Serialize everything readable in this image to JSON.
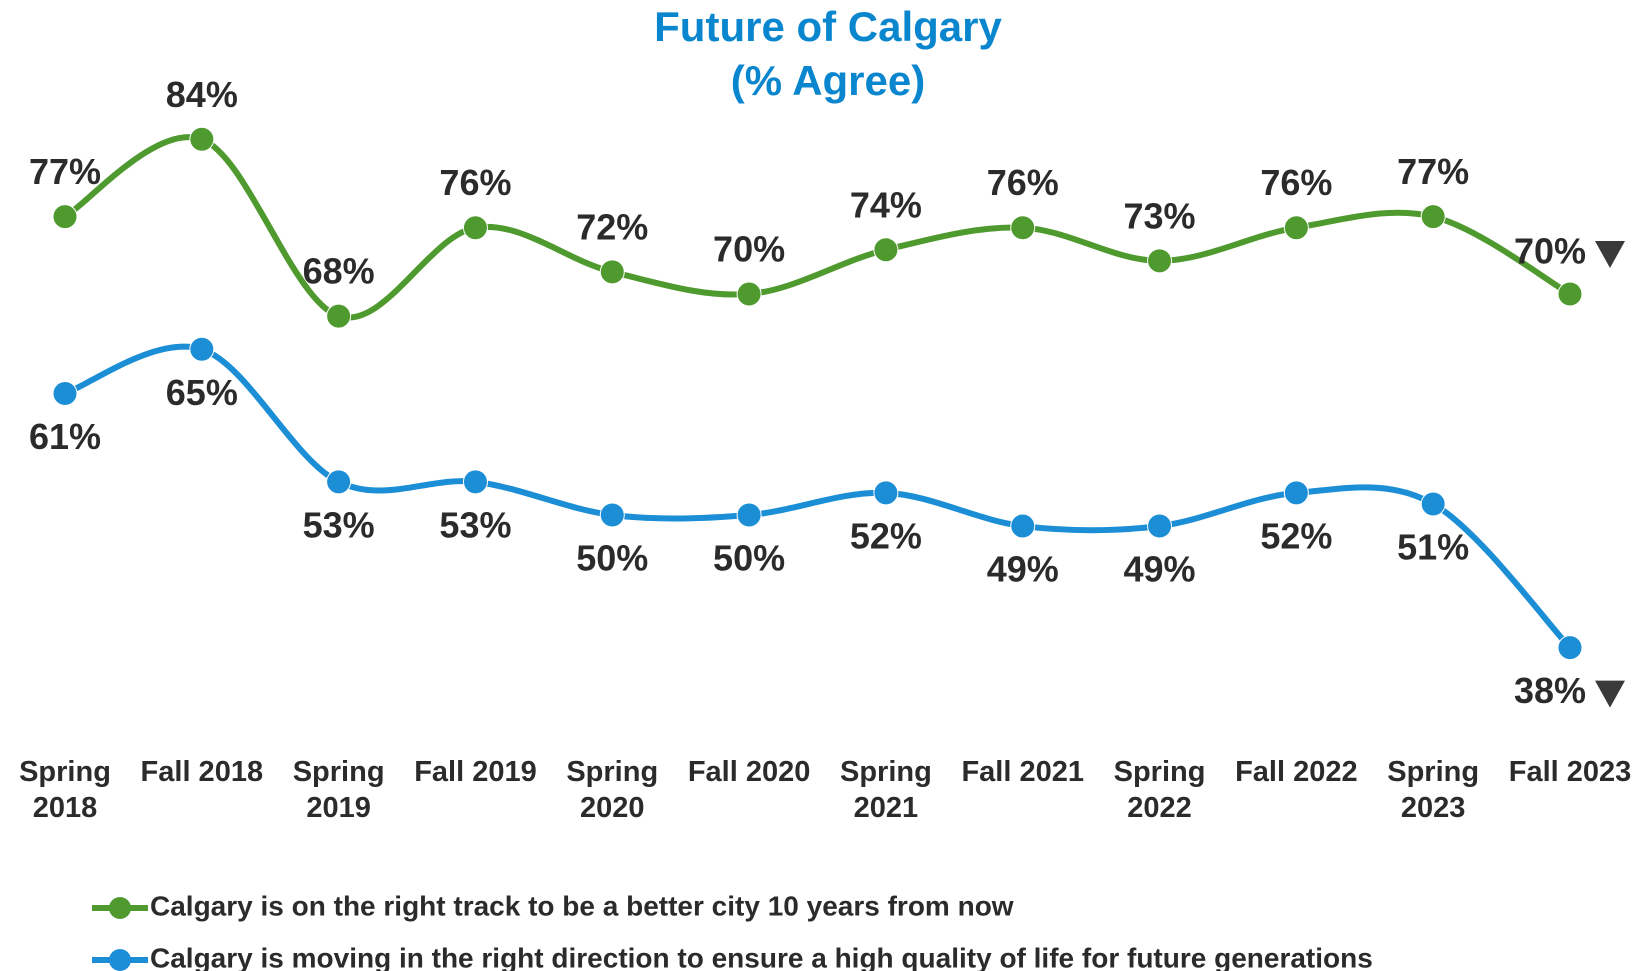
{
  "chart_data": {
    "type": "line",
    "title": "Future of Calgary",
    "subtitle": "(% Agree)",
    "categories": [
      "Spring 2018",
      "Fall 2018",
      "Spring 2019",
      "Fall 2019",
      "Spring 2020",
      "Fall 2020",
      "Spring 2021",
      "Fall 2021",
      "Spring 2022",
      "Fall 2022",
      "Spring 2023",
      "Fall 2023"
    ],
    "series": [
      {
        "name": "Calgary is on the right track to be a better city 10 years from now",
        "color": "#4f9a2e",
        "values": [
          77,
          84,
          68,
          76,
          72,
          70,
          74,
          76,
          73,
          76,
          77,
          70
        ],
        "value_labels": [
          "77%",
          "84%",
          "68%",
          "76%",
          "72%",
          "70%",
          "74%",
          "76%",
          "73%",
          "76%",
          "77%",
          "70%"
        ]
      },
      {
        "name": "Calgary is moving in the right direction to ensure a high quality of life for future generations",
        "color": "#1b8ed6",
        "values": [
          61,
          65,
          53,
          53,
          50,
          50,
          52,
          49,
          49,
          52,
          51,
          38
        ],
        "value_labels": [
          "61%",
          "65%",
          "53%",
          "53%",
          "50%",
          "50%",
          "52%",
          "49%",
          "49%",
          "52%",
          "51%",
          "38%"
        ]
      }
    ],
    "ylim": [
      30,
      90
    ]
  }
}
